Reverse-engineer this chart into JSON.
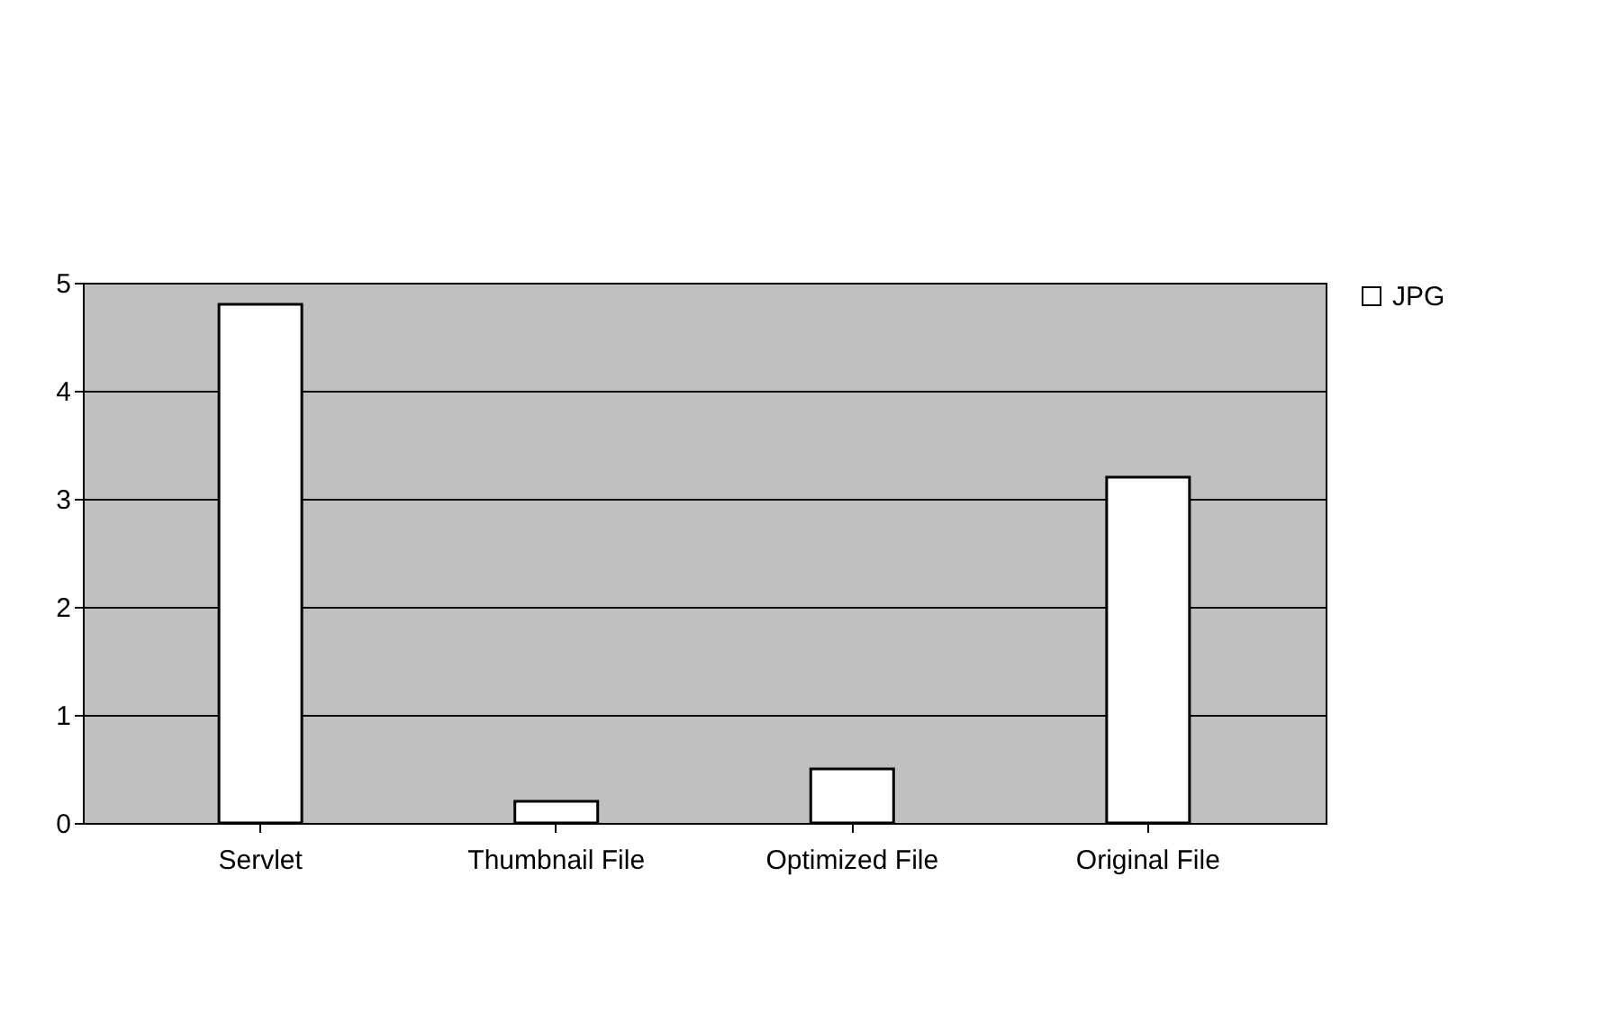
{
  "chart_data": {
    "type": "bar",
    "categories": [
      "Servlet",
      "Thumbnail File",
      "Optimized File",
      "Original File"
    ],
    "series": [
      {
        "name": "JPG",
        "color": "#ffffff",
        "values": [
          4.8,
          0.2,
          0.5,
          3.2
        ]
      }
    ],
    "ylim": [
      0,
      5
    ],
    "yticks": [
      0,
      1,
      2,
      3,
      4,
      5
    ],
    "grid": "y",
    "legend": "right"
  }
}
